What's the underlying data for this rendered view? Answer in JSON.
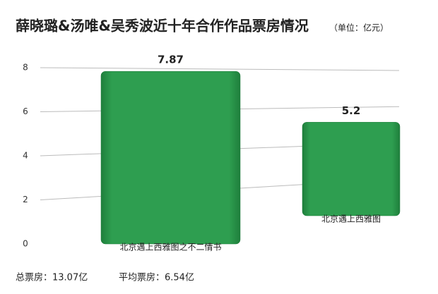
{
  "chart_data": {
    "type": "bar",
    "title": "薛晓璐&汤唯&吴秀波近十年合作作品票房情况",
    "subtitle": "（单位：亿元）",
    "categories": [
      "北京遇上西雅图之不二情书",
      "北京遇上西雅图"
    ],
    "values": [
      7.87,
      5.2
    ],
    "color": "#2e9e50",
    "ylim": [
      0,
      8
    ],
    "yticks": [
      0,
      2,
      4,
      6,
      8
    ],
    "grid": true,
    "notes": [
      "总票房：13.07亿",
      "平均票房：6.54亿"
    ]
  }
}
